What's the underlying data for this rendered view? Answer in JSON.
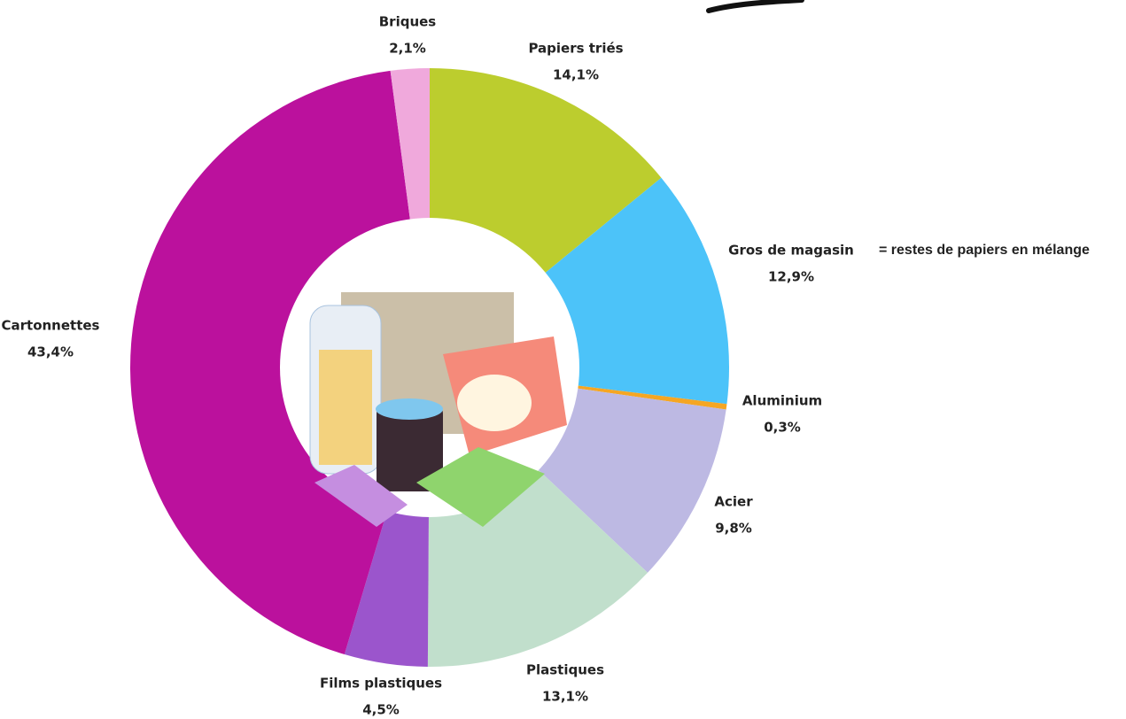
{
  "chart_data": {
    "type": "pie",
    "donut": true,
    "categories": [
      "Papiers triés",
      "Gros de magasin",
      "Aluminium",
      "Acier",
      "Plastiques",
      "Films plastiques",
      "Cartonnettes",
      "Briques"
    ],
    "values": [
      14.1,
      12.9,
      0.3,
      9.8,
      13.1,
      4.5,
      43.4,
      2.1
    ],
    "value_labels": [
      "14,1%",
      "12,9%",
      "0,3%",
      "9,8%",
      "13,1%",
      "4,5%",
      "43,4%",
      "2,1%"
    ],
    "colors": [
      "#bccd2e",
      "#4cc3f9",
      "#f5a623",
      "#bdb9e3",
      "#c1dfcc",
      "#9b55cc",
      "#bb119d",
      "#f0a9dc"
    ],
    "annotation": "= restes de papiers en mélange"
  }
}
